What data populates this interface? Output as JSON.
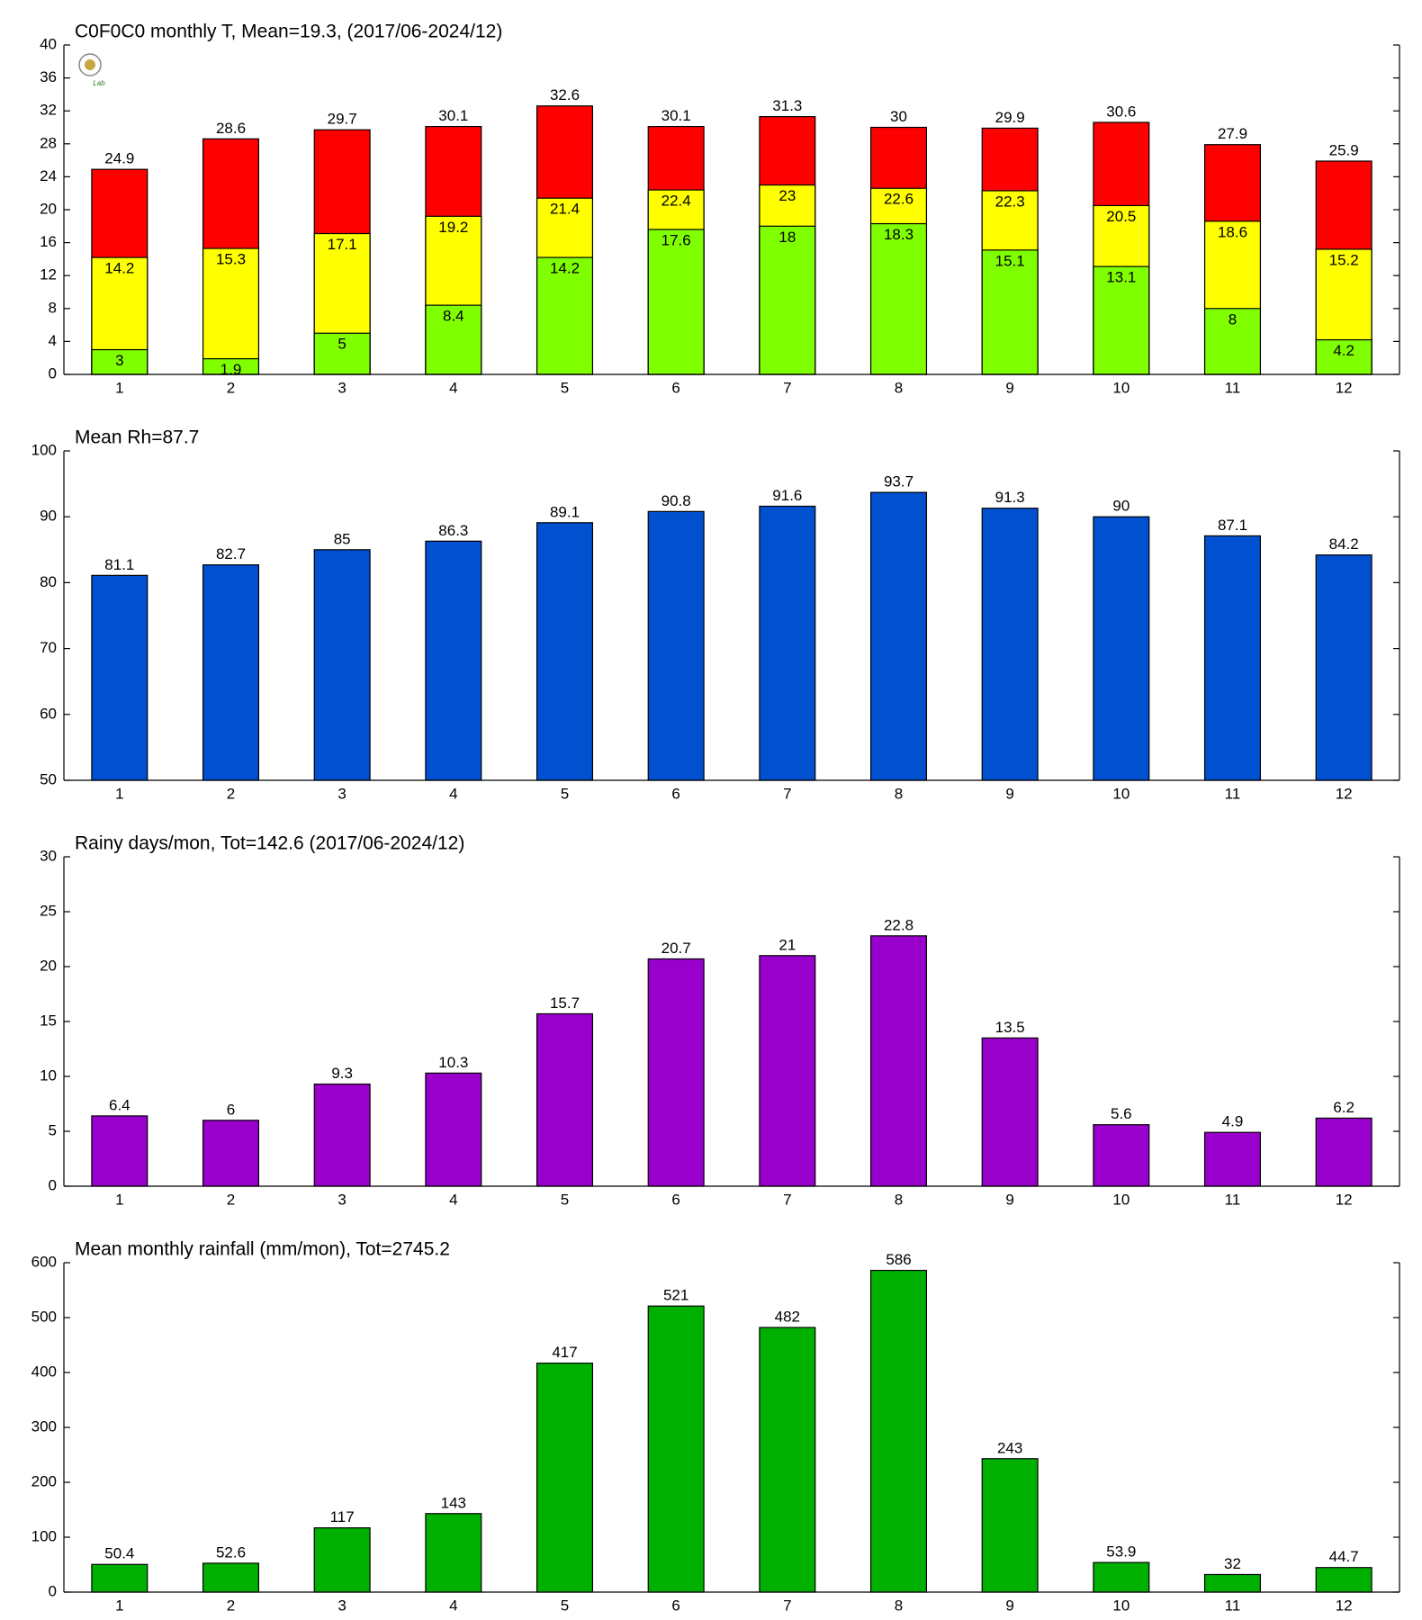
{
  "chart_data": [
    {
      "type": "overlap_bar",
      "title": "C0F0C0 monthly T, Mean=19.3, (2017/06-2024/12)",
      "categories": [
        "1",
        "2",
        "3",
        "4",
        "5",
        "6",
        "7",
        "8",
        "9",
        "10",
        "11",
        "12"
      ],
      "series": [
        {
          "color": "#ff0000",
          "values": [
            24.9,
            28.6,
            29.7,
            30.1,
            32.6,
            30.1,
            31.3,
            30,
            29.9,
            30.6,
            27.9,
            25.9
          ]
        },
        {
          "color": "#ffff00",
          "values": [
            14.2,
            15.3,
            17.1,
            19.2,
            21.4,
            22.4,
            23,
            22.6,
            22.3,
            20.5,
            18.6,
            15.2
          ]
        },
        {
          "color": "#80ff00",
          "values": [
            3,
            1.9,
            5,
            8.4,
            14.2,
            17.6,
            18,
            18.3,
            15.1,
            13.1,
            8,
            4.2
          ]
        }
      ],
      "ylim": [
        0,
        40
      ],
      "yticks": [
        0,
        4,
        8,
        12,
        16,
        20,
        24,
        28,
        32,
        36,
        40
      ]
    },
    {
      "type": "bar",
      "title": "Mean Rh=87.7",
      "categories": [
        "1",
        "2",
        "3",
        "4",
        "5",
        "6",
        "7",
        "8",
        "9",
        "10",
        "11",
        "12"
      ],
      "values": [
        81.1,
        82.7,
        85,
        86.3,
        89.1,
        90.8,
        91.6,
        93.7,
        91.3,
        90,
        87.1,
        84.2
      ],
      "color": "#0050d0",
      "ylim": [
        50,
        100
      ],
      "yticks": [
        50,
        60,
        70,
        80,
        90,
        100
      ]
    },
    {
      "type": "bar",
      "title": "Rainy days/mon, Tot=142.6 (2017/06-2024/12)",
      "categories": [
        "1",
        "2",
        "3",
        "4",
        "5",
        "6",
        "7",
        "8",
        "9",
        "10",
        "11",
        "12"
      ],
      "values": [
        6.4,
        6,
        9.3,
        10.3,
        15.7,
        20.7,
        21,
        22.8,
        13.5,
        5.6,
        4.9,
        6.2
      ],
      "color": "#9900cc",
      "ylim": [
        0,
        30
      ],
      "yticks": [
        0,
        5,
        10,
        15,
        20,
        25,
        30
      ]
    },
    {
      "type": "bar",
      "title": "Mean monthly rainfall (mm/mon), Tot=2745.2",
      "categories": [
        "1",
        "2",
        "3",
        "4",
        "5",
        "6",
        "7",
        "8",
        "9",
        "10",
        "11",
        "12"
      ],
      "values": [
        50.4,
        52.6,
        117,
        143,
        417,
        521,
        482,
        586,
        243,
        53.9,
        32,
        44.7
      ],
      "color": "#00b000",
      "ylim": [
        0,
        600
      ],
      "yticks": [
        0,
        100,
        200,
        300,
        400,
        500,
        600
      ]
    }
  ]
}
